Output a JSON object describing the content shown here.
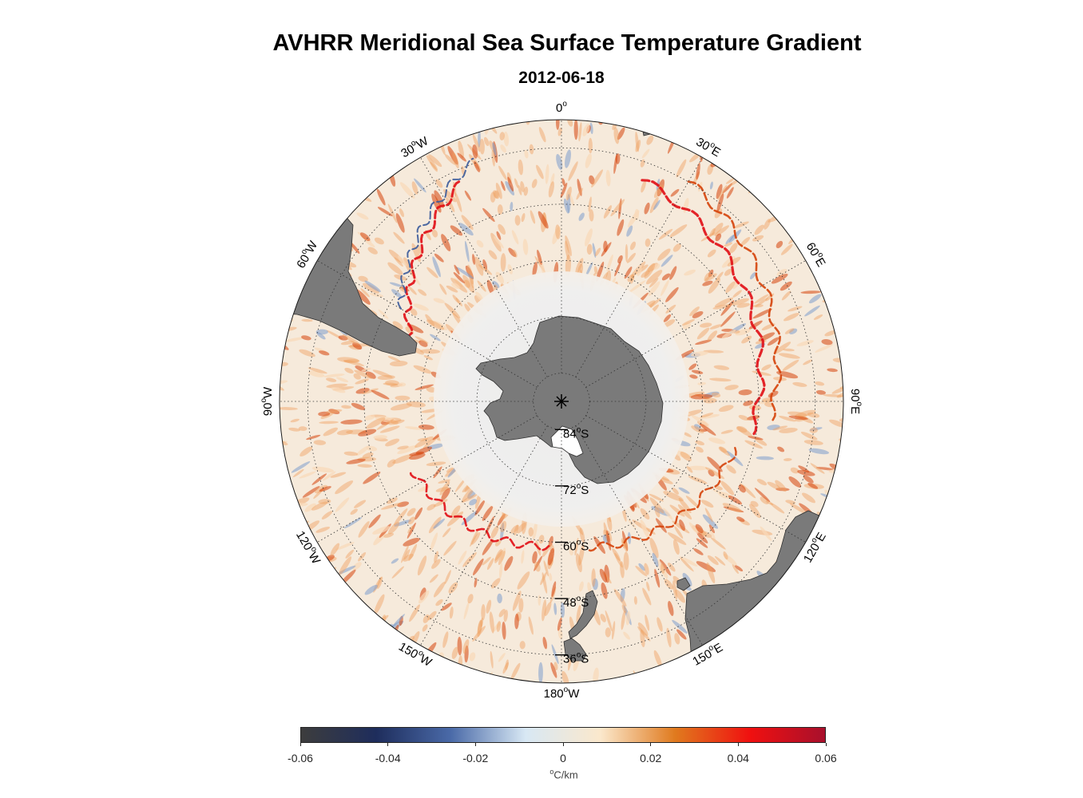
{
  "title": "AVHRR Meridional Sea Surface Temperature Gradient",
  "subtitle": "2012-06-18",
  "map": {
    "projection": "south polar stereographic",
    "lon_labels": [
      {
        "text": "0",
        "sup": "o",
        "suffix": "",
        "lon": 0
      },
      {
        "text": "30",
        "sup": "o",
        "suffix": "E",
        "lon": 30
      },
      {
        "text": "60",
        "sup": "o",
        "suffix": "E",
        "lon": 60
      },
      {
        "text": "90",
        "sup": "o",
        "suffix": "E",
        "lon": 90
      },
      {
        "text": "120",
        "sup": "o",
        "suffix": "E",
        "lon": 120
      },
      {
        "text": "150",
        "sup": "o",
        "suffix": "E",
        "lon": 150
      },
      {
        "text": "180",
        "sup": "o",
        "suffix": "W",
        "lon": 180
      },
      {
        "text": "150",
        "sup": "o",
        "suffix": "W",
        "lon": -150
      },
      {
        "text": "120",
        "sup": "o",
        "suffix": "W",
        "lon": -120
      },
      {
        "text": "90",
        "sup": "o",
        "suffix": "W",
        "lon": -90
      },
      {
        "text": "60",
        "sup": "o",
        "suffix": "W",
        "lon": -60
      },
      {
        "text": "30",
        "sup": "o",
        "suffix": "W",
        "lon": -30
      }
    ],
    "lat_labels": [
      {
        "text": "84",
        "sup": "o",
        "suffix": "S",
        "lat": -84
      },
      {
        "text": "72",
        "sup": "o",
        "suffix": "S",
        "lat": -72
      },
      {
        "text": "60",
        "sup": "o",
        "suffix": "S",
        "lat": -60
      },
      {
        "text": "48",
        "sup": "o",
        "suffix": "S",
        "lat": -48
      },
      {
        "text": "36",
        "sup": "o",
        "suffix": "S",
        "lat": -36
      }
    ],
    "colors": {
      "land": "#7a7a7a",
      "ice": "#ededed",
      "ocean_background": "#f6eadb",
      "positive": "#d5420a",
      "strong_positive": "#e10d14",
      "negative": "#3a5a9a"
    }
  },
  "colorbar": {
    "ticks": [
      "-0.06",
      "-0.04",
      "-0.02",
      "0",
      "0.02",
      "0.04",
      "0.06"
    ],
    "tick_values": [
      -0.06,
      -0.04,
      -0.02,
      0,
      0.02,
      0.04,
      0.06
    ],
    "range": [
      -0.06,
      0.06
    ],
    "unit_sup": "o",
    "unit": "C/km",
    "stops": [
      "#3d3d3d",
      "#1e2d5c",
      "#4a6aa8",
      "#d8e8f4",
      "#fbe8cc",
      "#e07a1e",
      "#f01010",
      "#a8102c"
    ]
  }
}
